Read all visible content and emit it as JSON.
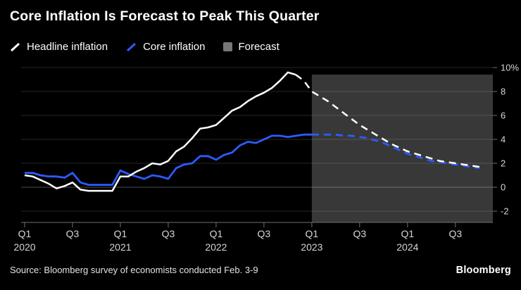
{
  "title": "Core Inflation Is Forecast to Peak This Quarter",
  "source": "Source: Bloomberg survey of economists conducted Feb. 3-9",
  "brand": "Bloomberg",
  "colors": {
    "background": "#000000",
    "headline_line": "#ffffff",
    "core_line": "#2d5bff",
    "forecast_box": "rgba(200,200,200,0.28)",
    "grid": "#262626",
    "zero_line": "#4d4d4d",
    "axis": "#707070",
    "tick_label": "#d6d6d6"
  },
  "legend": [
    {
      "label": "Headline inflation",
      "color": "#ffffff",
      "type": "line"
    },
    {
      "label": "Core inflation",
      "color": "#2d5bff",
      "type": "line"
    },
    {
      "label": "Forecast",
      "color": "#767676",
      "type": "box"
    }
  ],
  "chart_data": {
    "type": "line",
    "title": "Core Inflation Is Forecast to Peak This Quarter",
    "x_unit": "month",
    "x_start": "2020-01",
    "x_end": "2024-10",
    "ylim": [
      -2.6,
      10.4
    ],
    "grid": true,
    "legend_position": "top-left",
    "y_axis_side": "right",
    "y_ticks": [
      {
        "value": 10,
        "label": "10%"
      },
      {
        "value": 8,
        "label": "8"
      },
      {
        "value": 6,
        "label": "6"
      },
      {
        "value": 4,
        "label": "4"
      },
      {
        "value": 2,
        "label": "2"
      },
      {
        "value": 0,
        "label": "0"
      },
      {
        "value": -2,
        "label": "-2"
      }
    ],
    "x_ticks": [
      {
        "label": "Q1",
        "year": "2020",
        "index": 0
      },
      {
        "label": "Q3",
        "year": "",
        "index": 6
      },
      {
        "label": "Q1",
        "year": "2021",
        "index": 12
      },
      {
        "label": "Q3",
        "year": "",
        "index": 18
      },
      {
        "label": "Q1",
        "year": "2022",
        "index": 24
      },
      {
        "label": "Q3",
        "year": "",
        "index": 30
      },
      {
        "label": "Q1",
        "year": "2023",
        "index": 36
      },
      {
        "label": "Q3",
        "year": "",
        "index": 42
      },
      {
        "label": "Q1",
        "year": "2024",
        "index": 48
      },
      {
        "label": "Q3",
        "year": "",
        "index": 54
      }
    ],
    "forecast_region": {
      "start_index": 36,
      "color": "rgba(200,200,200,0.28)"
    },
    "series": [
      {
        "name": "Headline inflation",
        "color": "#ffffff",
        "width": 2.5,
        "forecast_from_index": 34,
        "values": [
          1.0,
          0.9,
          0.6,
          0.3,
          -0.1,
          0.1,
          0.4,
          -0.2,
          -0.3,
          -0.3,
          -0.3,
          -0.3,
          0.9,
          0.9,
          1.3,
          1.6,
          2.0,
          1.9,
          2.2,
          3.0,
          3.4,
          4.1,
          4.9,
          5.0,
          5.2,
          5.8,
          6.4,
          6.7,
          7.2,
          7.6,
          7.9,
          8.3,
          8.9,
          9.6,
          9.4,
          8.9,
          8.0,
          7.6,
          7.2,
          6.7,
          6.2,
          5.7,
          5.2,
          4.8,
          4.4,
          4.0,
          3.6,
          3.3,
          3.0,
          2.8,
          2.6,
          2.4,
          2.2,
          2.1,
          2.0,
          1.9,
          1.8,
          1.7
        ]
      },
      {
        "name": "Core inflation",
        "color": "#2d5bff",
        "width": 2.8,
        "forecast_from_index": 36,
        "values": [
          1.2,
          1.2,
          1.0,
          0.9,
          0.9,
          0.8,
          1.2,
          0.4,
          0.2,
          0.2,
          0.2,
          0.2,
          1.4,
          1.1,
          0.9,
          0.7,
          1.0,
          0.9,
          0.7,
          1.6,
          1.9,
          2.0,
          2.6,
          2.6,
          2.3,
          2.7,
          2.9,
          3.5,
          3.8,
          3.7,
          4.0,
          4.3,
          4.3,
          4.2,
          4.3,
          4.4,
          4.4,
          4.4,
          4.4,
          4.4,
          4.3,
          4.3,
          4.2,
          4.1,
          3.9,
          3.7,
          3.4,
          3.1,
          2.8,
          2.6,
          2.4,
          2.2,
          2.1,
          2.0,
          1.9,
          1.8,
          1.7,
          1.6
        ]
      }
    ]
  }
}
